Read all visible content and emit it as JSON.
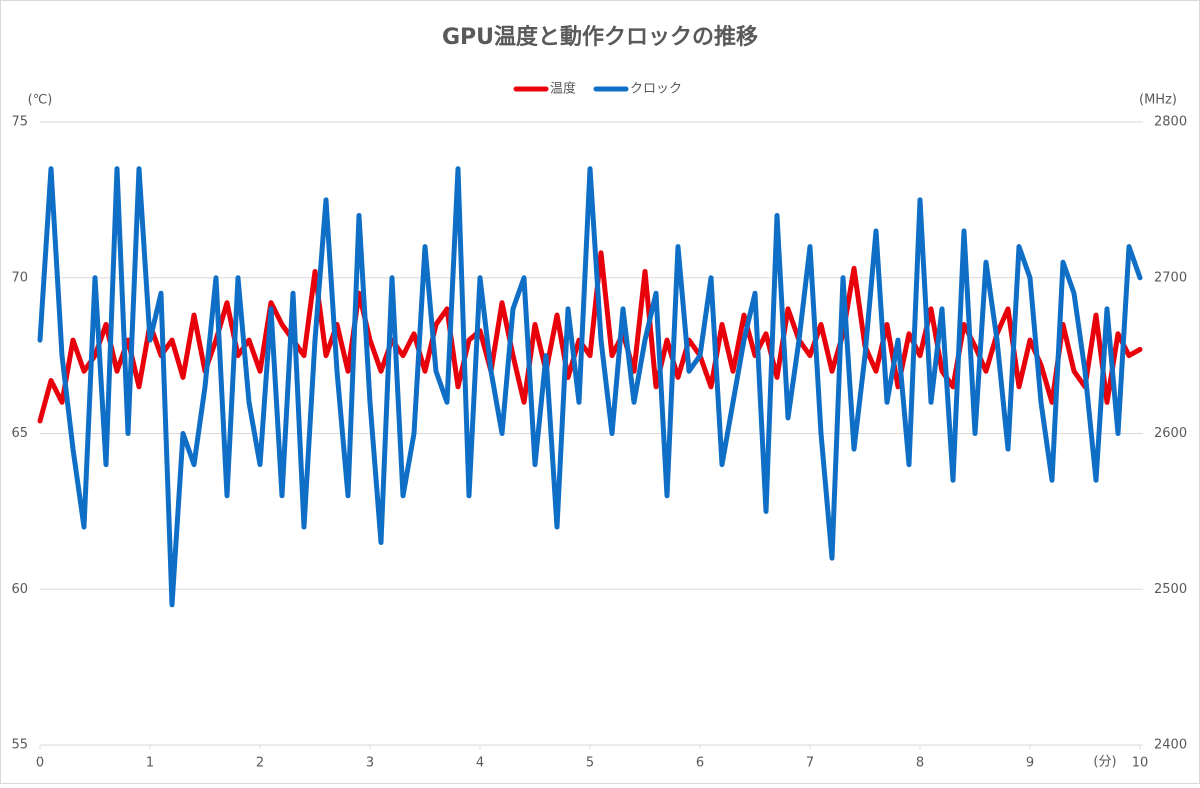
{
  "chart_data": {
    "type": "line",
    "title": "GPU温度と動作クロックの推移",
    "y_label": "(℃)",
    "y2_label": "(MHz)",
    "x_label": "(分)",
    "x": [
      0,
      0.1,
      0.2,
      0.3,
      0.4,
      0.5,
      0.6,
      0.7,
      0.8,
      0.9,
      1,
      1.1,
      1.2,
      1.3,
      1.4,
      1.5,
      1.6,
      1.7,
      1.8,
      1.9,
      2,
      2.1,
      2.2,
      2.3,
      2.4,
      2.5,
      2.6,
      2.7,
      2.8,
      2.9,
      3,
      3.1,
      3.2,
      3.3,
      3.4,
      3.5,
      3.6,
      3.7,
      3.8,
      3.9,
      4,
      4.1,
      4.2,
      4.3,
      4.4,
      4.5,
      4.6,
      4.7,
      4.8,
      4.9,
      5,
      5.1,
      5.2,
      5.3,
      5.4,
      5.5,
      5.6,
      5.7,
      5.8,
      5.9,
      6,
      6.1,
      6.2,
      6.3,
      6.4,
      6.5,
      6.6,
      6.7,
      6.8,
      6.9,
      7,
      7.1,
      7.2,
      7.3,
      7.4,
      7.5,
      7.6,
      7.7,
      7.8,
      7.9,
      8,
      8.1,
      8.2,
      8.3,
      8.4,
      8.5,
      8.6,
      8.7,
      8.8,
      8.9,
      9,
      9.1,
      9.2,
      9.3,
      9.4,
      9.5,
      9.6,
      9.7,
      9.8,
      9.9,
      10
    ],
    "series": [
      {
        "name": "温度",
        "color": "#e8000b",
        "axis": "y",
        "values": [
          65.4,
          66.7,
          66,
          68,
          67,
          67.5,
          68.5,
          67,
          68,
          66.5,
          68.5,
          67.5,
          68,
          66.8,
          68.8,
          67,
          68,
          69.2,
          67.5,
          68,
          67,
          69.2,
          68.5,
          68,
          67.5,
          70.2,
          67.5,
          68.5,
          67,
          69.5,
          68,
          67,
          68,
          67.5,
          68.2,
          67,
          68.5,
          69,
          66.5,
          68,
          68.3,
          67,
          69.2,
          67.5,
          66,
          68.5,
          67,
          68.8,
          66.8,
          68,
          67.5,
          70.8,
          67.5,
          68.2,
          67,
          70.2,
          66.5,
          68,
          66.8,
          68,
          67.5,
          66.5,
          68.5,
          67,
          68.8,
          67.5,
          68.2,
          66.8,
          69,
          68,
          67.5,
          68.5,
          67,
          68.2,
          70.3,
          67.8,
          67,
          68.5,
          66.5,
          68.2,
          67.5,
          69,
          67,
          66.5,
          68.5,
          67.8,
          67,
          68.2,
          69,
          66.5,
          68,
          67.2,
          66,
          68.5,
          67,
          66.5,
          68.8,
          66,
          68.2,
          67.5,
          67.7
        ]
      },
      {
        "name": "クロック",
        "color": "#0f6fc6",
        "axis": "y2",
        "values": [
          2660,
          2770,
          2650,
          2590,
          2540,
          2700,
          2580,
          2770,
          2600,
          2770,
          2660,
          2690,
          2490,
          2600,
          2580,
          2630,
          2700,
          2560,
          2700,
          2620,
          2580,
          2680,
          2560,
          2690,
          2540,
          2660,
          2750,
          2640,
          2560,
          2740,
          2620,
          2530,
          2700,
          2560,
          2600,
          2720,
          2640,
          2620,
          2770,
          2560,
          2700,
          2640,
          2600,
          2680,
          2700,
          2580,
          2650,
          2540,
          2680,
          2620,
          2770,
          2660,
          2600,
          2680,
          2620,
          2660,
          2690,
          2560,
          2720,
          2640,
          2650,
          2700,
          2580,
          2620,
          2660,
          2690,
          2550,
          2740,
          2610,
          2660,
          2720,
          2600,
          2520,
          2700,
          2590,
          2650,
          2730,
          2620,
          2660,
          2580,
          2750,
          2620,
          2680,
          2570,
          2730,
          2600,
          2710,
          2660,
          2590,
          2720,
          2700,
          2620,
          2570,
          2710,
          2690,
          2640,
          2570,
          2680,
          2600,
          2720,
          2700
        ]
      }
    ],
    "xlim": [
      0,
      10
    ],
    "xticks": [
      0,
      1,
      2,
      3,
      4,
      5,
      6,
      7,
      8,
      9,
      10
    ],
    "ylim": [
      55,
      75
    ],
    "yticks": [
      55,
      60,
      65,
      70,
      75
    ],
    "y2lim": [
      2400,
      2800
    ],
    "y2ticks": [
      2400,
      2500,
      2600,
      2700,
      2800
    ],
    "grid": true,
    "legend": "top"
  }
}
